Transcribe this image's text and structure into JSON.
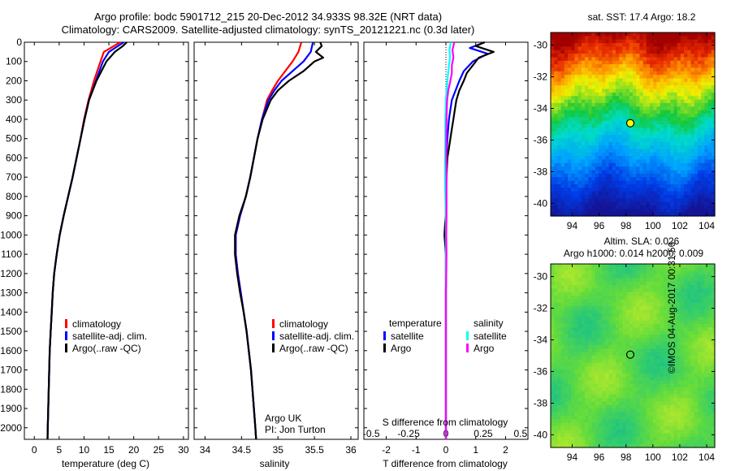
{
  "figure": {
    "title_line1": "Argo profile: bodc 5901712_215 20-Dec-2012 34.933S 98.32E (NRT data)",
    "title_line2": "Climatology: CARS2009. Satellite-adjusted climatology: synTS_20121221.nc (0.3d later)",
    "credit": "©IMOS 04-Aug-2017 00:31:56",
    "institution": "Argo UK",
    "pi": "PI: Jon Turton",
    "colors": {
      "climatology": "#ff0000",
      "satellite": "#0000ff",
      "argo": "#000000",
      "sat_s": "#00ffff",
      "argo_s": "#ff00ff"
    }
  },
  "legends": {
    "profile": [
      "climatology",
      "satellite-adj. clim.",
      "Argo(..raw -QC)"
    ],
    "diff_temp_title": "temperature",
    "diff_sal_title": "salinity",
    "diff_temp_items": [
      "satellite",
      "Argo"
    ],
    "diff_sal_items": [
      "satellite",
      "Argo"
    ]
  },
  "chart_data": [
    {
      "type": "line",
      "panel": "temperature",
      "xlabel": "temperature (deg C)",
      "ylabel": "",
      "xlim": [
        -2,
        31
      ],
      "ylim": [
        2060,
        0
      ],
      "xticks": [
        0,
        5,
        10,
        15,
        20,
        25,
        30
      ],
      "yticks": [
        0,
        100,
        200,
        300,
        400,
        500,
        600,
        700,
        800,
        900,
        1000,
        1100,
        1200,
        1300,
        1400,
        1500,
        1600,
        1700,
        1800,
        1900,
        2000
      ],
      "series": [
        {
          "name": "climatology",
          "color": "#ff0000",
          "depth": [
            0,
            50,
            100,
            200,
            300,
            400,
            500,
            600,
            700,
            800,
            900,
            1000,
            1100,
            1200,
            1300,
            1400,
            1500,
            1600,
            1700,
            1800,
            1900,
            2000,
            2060
          ],
          "values": [
            17.3,
            14.0,
            13.3,
            12.0,
            10.9,
            10.0,
            9.3,
            8.5,
            7.7,
            6.8,
            5.9,
            5.1,
            4.5,
            4.0,
            3.7,
            3.5,
            3.3,
            3.1,
            3.0,
            2.9,
            2.8,
            2.7,
            2.65
          ]
        },
        {
          "name": "satellite-adj. clim.",
          "color": "#0000ff",
          "depth": [
            0,
            50,
            100,
            200,
            300,
            400,
            500,
            600,
            700,
            800,
            900,
            1000,
            1100,
            1200,
            1300,
            1400,
            1500,
            1600,
            1700,
            1800,
            1900,
            2000,
            2060
          ],
          "values": [
            18.0,
            15.0,
            13.8,
            12.4,
            11.0,
            10.1,
            9.3,
            8.5,
            7.7,
            6.8,
            5.9,
            5.1,
            4.5,
            4.0,
            3.7,
            3.5,
            3.3,
            3.1,
            3.0,
            2.9,
            2.8,
            2.7,
            2.65
          ]
        },
        {
          "name": "Argo(..raw -QC)",
          "color": "#000000",
          "depth": [
            0,
            20,
            50,
            100,
            150,
            200,
            300,
            400,
            500,
            600,
            700,
            800,
            900,
            1000,
            1100,
            1200,
            1300,
            1400,
            1500,
            1600,
            1700,
            1800,
            1900,
            2000,
            2060
          ],
          "values": [
            18.6,
            17.8,
            16.2,
            14.5,
            13.5,
            12.5,
            11.0,
            10.1,
            9.3,
            8.5,
            7.7,
            6.8,
            5.9,
            5.1,
            4.5,
            4.0,
            3.7,
            3.5,
            3.3,
            3.1,
            3.0,
            2.9,
            2.8,
            2.7,
            2.65
          ]
        }
      ]
    },
    {
      "type": "line",
      "panel": "salinity",
      "xlabel": "salinity",
      "ylabel": "",
      "xlim": [
        33.85,
        36.1
      ],
      "ylim": [
        2060,
        0
      ],
      "xticks": [
        34,
        34.5,
        35,
        35.5,
        36
      ],
      "series": [
        {
          "name": "climatology",
          "color": "#ff0000",
          "depth": [
            0,
            50,
            100,
            150,
            200,
            250,
            300,
            400,
            500,
            600,
            700,
            800,
            900,
            1000,
            1100,
            1200,
            1300,
            1400,
            1500,
            1600,
            1700,
            1800,
            1900,
            2000,
            2060
          ],
          "values": [
            35.32,
            35.28,
            35.2,
            35.1,
            35.0,
            34.92,
            34.85,
            34.78,
            34.72,
            34.67,
            34.62,
            34.56,
            34.48,
            34.42,
            34.42,
            34.45,
            34.49,
            34.53,
            34.57,
            34.6,
            34.63,
            34.65,
            34.67,
            34.69,
            34.7
          ]
        },
        {
          "name": "satellite-adj. clim.",
          "color": "#0000ff",
          "depth": [
            0,
            50,
            100,
            150,
            200,
            250,
            300,
            400,
            500,
            600,
            700,
            800,
            900,
            1000,
            1100,
            1200,
            1300,
            1400,
            1500,
            1600,
            1700,
            1800,
            1900,
            2000,
            2060
          ],
          "values": [
            35.48,
            35.45,
            35.35,
            35.2,
            35.05,
            34.95,
            34.87,
            34.78,
            34.72,
            34.67,
            34.62,
            34.56,
            34.48,
            34.42,
            34.42,
            34.45,
            34.49,
            34.53,
            34.57,
            34.6,
            34.63,
            34.65,
            34.67,
            34.69,
            34.7
          ]
        },
        {
          "name": "Argo(..raw -QC)",
          "color": "#000000",
          "depth": [
            0,
            20,
            50,
            80,
            100,
            150,
            200,
            250,
            300,
            400,
            500,
            600,
            700,
            800,
            900,
            1000,
            1100,
            1200,
            1300,
            1400,
            1500,
            1600,
            1700,
            1800,
            1900,
            2000,
            2060
          ],
          "values": [
            35.58,
            35.6,
            35.52,
            35.62,
            35.5,
            35.35,
            35.15,
            35.0,
            34.9,
            34.79,
            34.72,
            34.67,
            34.62,
            34.56,
            34.47,
            34.41,
            34.41,
            34.44,
            34.48,
            34.53,
            34.57,
            34.6,
            34.63,
            34.65,
            34.67,
            34.69,
            34.7
          ]
        }
      ]
    },
    {
      "type": "line",
      "panel": "difference",
      "xlabel": "T difference from climatology",
      "xlabel2": "S difference from climatology",
      "xlim": [
        -2.75,
        2.75
      ],
      "ylim": [
        2060,
        0
      ],
      "xticks": [
        -2,
        -1,
        0,
        1,
        2
      ],
      "xticks2": [
        -0.5,
        -0.25,
        0,
        0.25,
        0.5
      ],
      "series": [
        {
          "name": "temperature satellite",
          "color": "#0000ff",
          "depth": [
            0,
            30,
            60,
            100,
            150,
            200,
            300,
            400,
            500,
            600,
            700,
            800,
            900,
            1000,
            1100,
            1200,
            1400,
            1600,
            1800,
            2000,
            2060
          ],
          "values": [
            1.3,
            0.8,
            1.4,
            0.9,
            0.6,
            0.45,
            0.2,
            0.1,
            0.05,
            0.02,
            0.01,
            0,
            0,
            0,
            0,
            0,
            0,
            0,
            0,
            0,
            0
          ]
        },
        {
          "name": "temperature Argo",
          "color": "#000000",
          "depth": [
            0,
            20,
            50,
            80,
            120,
            160,
            200,
            250,
            300,
            350,
            400,
            450,
            500,
            550,
            600,
            700,
            800,
            900,
            950,
            1000,
            1100,
            1200,
            1400,
            1600,
            1800,
            2000,
            2060
          ],
          "values": [
            1.3,
            1.0,
            1.6,
            1.1,
            0.9,
            0.7,
            0.6,
            0.45,
            0.35,
            0.3,
            0.25,
            0.2,
            0.15,
            0.1,
            0.05,
            0.02,
            0,
            0,
            -0.03,
            -0.05,
            0,
            0,
            0,
            0,
            0,
            0,
            0
          ]
        },
        {
          "name": "salinity satellite",
          "color": "#00ffff",
          "depth": [
            0,
            40,
            80,
            120,
            200,
            300,
            400,
            500,
            600,
            700,
            800,
            900,
            1000,
            1200,
            1400,
            1600,
            1800,
            2000,
            2060
          ],
          "values": [
            0.16,
            0.12,
            0.14,
            0.1,
            0.05,
            0.0,
            -0.02,
            -0.02,
            -0.03,
            -0.03,
            -0.02,
            0,
            0,
            0,
            0,
            0,
            0,
            0,
            0
          ]
        },
        {
          "name": "salinity Argo",
          "color": "#ff00ff",
          "depth": [
            0,
            40,
            80,
            120,
            160,
            200,
            250,
            300,
            400,
            500,
            600,
            700,
            800,
            900,
            1000,
            1100,
            1200,
            1300,
            1400,
            1600,
            1800,
            2000,
            2060
          ],
          "values": [
            0.28,
            0.22,
            0.25,
            0.2,
            0.2,
            0.15,
            0.08,
            0.04,
            0.02,
            0.01,
            0.01,
            0.02,
            0.02,
            0.02,
            0.01,
            0.02,
            0.01,
            0,
            0,
            0,
            0,
            0,
            0
          ]
        }
      ]
    },
    {
      "type": "heatmap",
      "panel": "sst_map",
      "title": "sat. SST: 17.4  Argo: 18.2",
      "xlim": [
        92.4,
        104.6
      ],
      "ylim": [
        -40.8,
        -29.2
      ],
      "xticks": [
        94,
        96,
        98,
        100,
        102,
        104
      ],
      "yticks": [
        -30,
        -32,
        -34,
        -36,
        -38,
        -40
      ],
      "marker": {
        "lon": 98.32,
        "lat": -34.933
      }
    },
    {
      "type": "heatmap",
      "panel": "sla_map",
      "title": "Altim. SLA: 0.026",
      "subtitle": "Argo h1000: 0.014  h2000: 0.009",
      "xlim": [
        92.4,
        104.6
      ],
      "ylim": [
        -40.8,
        -29.2
      ],
      "xticks": [
        94,
        96,
        98,
        100,
        102,
        104
      ],
      "yticks": [
        -30,
        -32,
        -34,
        -36,
        -38,
        -40
      ],
      "marker": {
        "lon": 98.32,
        "lat": -34.933
      }
    }
  ]
}
